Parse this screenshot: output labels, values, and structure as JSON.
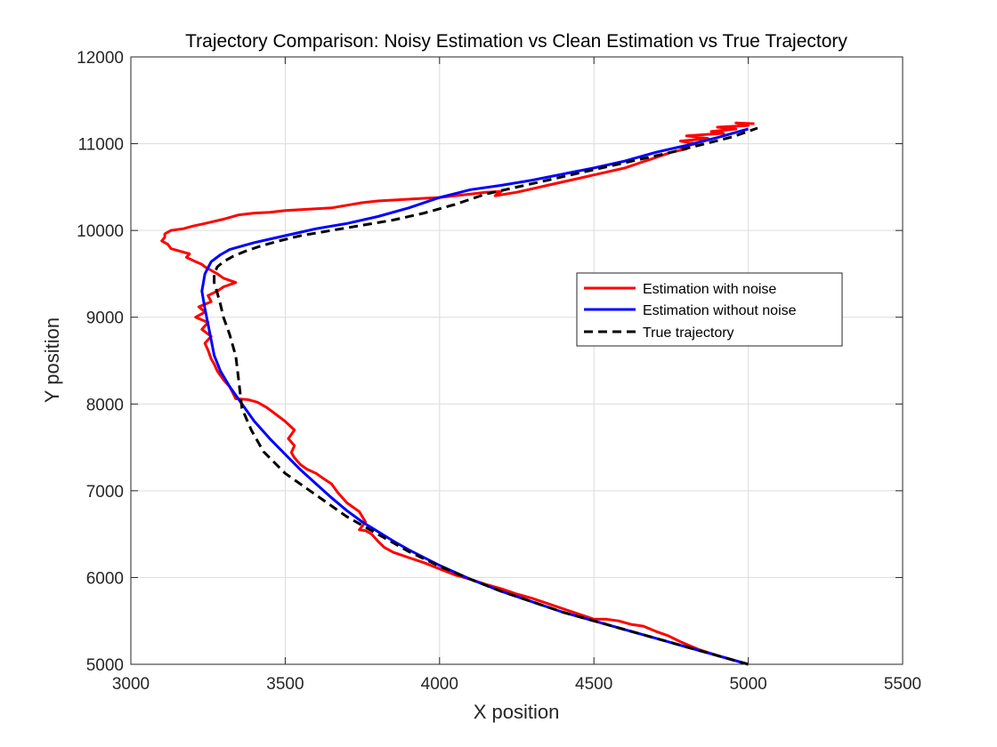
{
  "chart_data": {
    "type": "line",
    "title": "Trajectory Comparison: Noisy Estimation vs Clean Estimation vs True Trajectory",
    "xlabel": "X position",
    "ylabel": "Y position",
    "xlim": [
      3000,
      5500
    ],
    "ylim": [
      5000,
      12000
    ],
    "xticks": [
      3000,
      3500,
      4000,
      4500,
      5000,
      5500
    ],
    "yticks": [
      5000,
      6000,
      7000,
      8000,
      9000,
      10000,
      11000,
      12000
    ],
    "xtick_labels": [
      "3000",
      "3500",
      "4000",
      "4500",
      "5000",
      "5500"
    ],
    "ytick_labels": [
      "5000",
      "6000",
      "7000",
      "8000",
      "9000",
      "10000",
      "11000",
      "12000"
    ],
    "grid": true,
    "legend_position": "center-right",
    "series": [
      {
        "name": "Estimation with noise",
        "color": "#ff0000",
        "style": "solid",
        "x": [
          5000,
          4960,
          4900,
          4840,
          4780,
          4740,
          4700,
          4660,
          4620,
          4580,
          4540,
          4500,
          4450,
          4400,
          4350,
          4300,
          4250,
          4200,
          4150,
          4100,
          4050,
          4000,
          3950,
          3900,
          3850,
          3820,
          3800,
          3780,
          3760,
          3740,
          3760,
          3740,
          3700,
          3670,
          3650,
          3620,
          3600,
          3570,
          3550,
          3530,
          3520,
          3530,
          3510,
          3530,
          3500,
          3470,
          3440,
          3410,
          3380,
          3340,
          3320,
          3300,
          3280,
          3270,
          3260,
          3250,
          3240,
          3260,
          3230,
          3250,
          3210,
          3240,
          3220,
          3260,
          3250,
          3280,
          3300,
          3340,
          3300,
          3280,
          3260,
          3240,
          3230,
          3210,
          3180,
          3190,
          3160,
          3130,
          3120,
          3100,
          3110,
          3110,
          3130,
          3170,
          3200,
          3240,
          3300,
          3350,
          3400,
          3450,
          3500,
          3550,
          3600,
          3650,
          3700,
          3750,
          3800,
          3850,
          3900,
          3950,
          4000,
          4050,
          4100,
          4150,
          4200,
          4180,
          4250,
          4300,
          4350,
          4400,
          4450,
          4500,
          4550,
          4600,
          4650,
          4700,
          4750,
          4800,
          4780,
          4830,
          4780,
          4870,
          4800,
          4920,
          4880,
          4960,
          4900,
          5000,
          4960,
          5020
        ],
        "y": [
          5000,
          5040,
          5100,
          5170,
          5260,
          5330,
          5380,
          5440,
          5460,
          5500,
          5520,
          5520,
          5580,
          5640,
          5700,
          5760,
          5810,
          5870,
          5920,
          5980,
          6030,
          6100,
          6170,
          6230,
          6290,
          6350,
          6420,
          6500,
          6540,
          6550,
          6640,
          6760,
          6860,
          6980,
          7080,
          7150,
          7200,
          7250,
          7300,
          7380,
          7440,
          7520,
          7600,
          7700,
          7800,
          7880,
          7960,
          8020,
          8050,
          8060,
          8200,
          8280,
          8380,
          8460,
          8520,
          8620,
          8700,
          8780,
          8860,
          8940,
          9000,
          9060,
          9120,
          9180,
          9250,
          9300,
          9350,
          9400,
          9450,
          9500,
          9540,
          9580,
          9610,
          9640,
          9690,
          9730,
          9760,
          9790,
          9840,
          9880,
          9920,
          9960,
          10000,
          10020,
          10050,
          10080,
          10130,
          10180,
          10200,
          10210,
          10230,
          10240,
          10250,
          10260,
          10290,
          10320,
          10340,
          10350,
          10360,
          10370,
          10380,
          10400,
          10420,
          10440,
          10450,
          10400,
          10440,
          10480,
          10520,
          10560,
          10600,
          10640,
          10680,
          10720,
          10780,
          10840,
          10900,
          10940,
          10960,
          11000,
          11030,
          11060,
          11090,
          11120,
          11140,
          11170,
          11190,
          11210,
          11240,
          11230
        ]
      },
      {
        "name": "Estimation without noise",
        "color": "#0000ff",
        "style": "solid",
        "x": [
          5000,
          4900,
          4800,
          4700,
          4600,
          4500,
          4400,
          4300,
          4200,
          4100,
          4000,
          3900,
          3850,
          3800,
          3750,
          3700,
          3650,
          3600,
          3550,
          3500,
          3450,
          3400,
          3360,
          3320,
          3290,
          3270,
          3260,
          3250,
          3240,
          3230,
          3240,
          3260,
          3290,
          3320,
          3360,
          3400,
          3450,
          3500,
          3550,
          3600,
          3700,
          3800,
          3900,
          4000,
          4100,
          4200,
          4300,
          4400,
          4500,
          4600,
          4700,
          4800,
          4900,
          5000
        ],
        "y": [
          5000,
          5100,
          5200,
          5300,
          5400,
          5500,
          5600,
          5720,
          5840,
          5980,
          6140,
          6320,
          6420,
          6530,
          6640,
          6770,
          6920,
          7080,
          7240,
          7420,
          7600,
          7800,
          8000,
          8200,
          8380,
          8560,
          8740,
          8920,
          9100,
          9300,
          9500,
          9640,
          9720,
          9780,
          9820,
          9860,
          9900,
          9940,
          9980,
          10020,
          10080,
          10160,
          10260,
          10380,
          10470,
          10520,
          10580,
          10650,
          10720,
          10800,
          10900,
          10980,
          11070,
          11170
        ]
      },
      {
        "name": "True trajectory",
        "color": "#000000",
        "style": "dashed",
        "x": [
          5000,
          4900,
          4800,
          4700,
          4600,
          4500,
          4400,
          4300,
          4200,
          4100,
          4000,
          3900,
          3800,
          3700,
          3600,
          3500,
          3430,
          3390,
          3360,
          3350,
          3340,
          3320,
          3300,
          3290,
          3280,
          3270,
          3270,
          3280,
          3300,
          3330,
          3370,
          3420,
          3480,
          3550,
          3650,
          3750,
          3850,
          3950,
          4050,
          4150,
          4250,
          4350,
          4450,
          4550,
          4650,
          4750,
          4850,
          4950,
          5030
        ],
        "y": [
          5000,
          5100,
          5200,
          5300,
          5400,
          5500,
          5600,
          5720,
          5840,
          5980,
          6130,
          6300,
          6500,
          6700,
          6950,
          7200,
          7450,
          7700,
          7950,
          8250,
          8550,
          8800,
          9000,
          9150,
          9280,
          9400,
          9500,
          9580,
          9640,
          9700,
          9760,
          9820,
          9880,
          9940,
          10000,
          10060,
          10120,
          10200,
          10300,
          10420,
          10500,
          10580,
          10660,
          10740,
          10820,
          10900,
          10990,
          11080,
          11180
        ]
      }
    ]
  }
}
